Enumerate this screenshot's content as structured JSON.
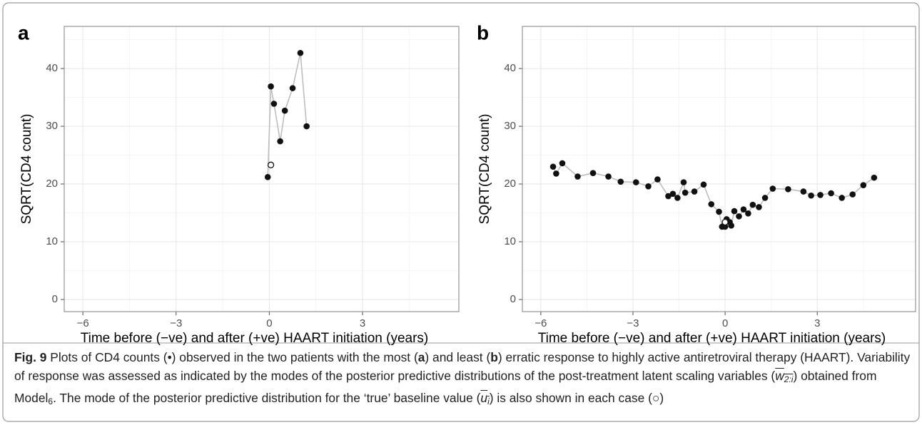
{
  "chart_data": [
    {
      "type": "line",
      "panel_label": "a",
      "xlabel": "Time before (−ve) and after (+ve) HAART initiation (years)",
      "ylabel": "SQRT(CD4 count)",
      "xlim": [
        -6.6,
        6.1
      ],
      "ylim": [
        -2.1,
        47.3
      ],
      "xticks": [
        {
          "value": -6,
          "label": "−6"
        },
        {
          "value": -3,
          "label": "−3"
        },
        0,
        3
      ],
      "yticks": [
        0,
        10,
        20,
        30,
        40
      ],
      "minor_xticks": [
        -4.5,
        -1.5,
        1.5,
        4.5
      ],
      "minor_yticks": [
        5,
        15,
        25,
        35,
        45
      ],
      "grid": true,
      "series": [
        {
          "x": [
            -0.05,
            0.05,
            0.15,
            0.35,
            0.5,
            0.75,
            1.0,
            1.2
          ],
          "values": [
            21.2,
            36.9,
            33.9,
            27.4,
            32.7,
            36.6,
            42.7,
            30.0
          ],
          "color": "#111111",
          "line_color": "#bdbdbd",
          "marker": "filled"
        },
        {
          "x": [
            0.05
          ],
          "values": [
            23.3
          ],
          "color": "#111111",
          "marker": "open"
        }
      ]
    },
    {
      "type": "line",
      "panel_label": "b",
      "xlabel": "Time before (−ve) and after (+ve) HAART initiation (years)",
      "ylabel": "SQRT(CD4 count)",
      "xlim": [
        -6.6,
        6.2
      ],
      "ylim": [
        -2.1,
        47.3
      ],
      "xticks": [
        {
          "value": -6,
          "label": "−6"
        },
        {
          "value": -3,
          "label": "−3"
        },
        0,
        3
      ],
      "yticks": [
        0,
        10,
        20,
        30,
        40
      ],
      "minor_xticks": [
        -4.5,
        -1.5,
        1.5,
        4.5
      ],
      "minor_yticks": [
        5,
        15,
        25,
        35,
        45
      ],
      "grid": true,
      "series": [
        {
          "x": [
            -5.6,
            -5.5,
            -5.3,
            -4.8,
            -4.3,
            -3.8,
            -3.4,
            -2.9,
            -2.5,
            -2.2,
            -1.85,
            -1.7,
            -1.55,
            -1.35,
            -1.3,
            -1.0,
            -0.7,
            -0.45,
            -0.2,
            -0.1,
            0.0,
            0.05,
            0.15,
            0.2,
            0.3,
            0.45,
            0.6,
            0.75,
            0.9,
            1.1,
            1.3,
            1.55,
            2.05,
            2.55,
            2.8,
            3.1,
            3.45,
            3.8,
            4.15,
            4.5,
            4.85
          ],
          "values": [
            23.0,
            21.8,
            23.6,
            21.3,
            21.9,
            21.3,
            20.4,
            20.3,
            19.6,
            20.8,
            17.9,
            18.3,
            17.6,
            20.3,
            18.5,
            18.7,
            19.9,
            16.5,
            15.2,
            12.6,
            12.6,
            13.9,
            13.4,
            12.8,
            15.3,
            14.4,
            15.6,
            14.9,
            16.4,
            16.0,
            17.6,
            19.2,
            19.1,
            18.7,
            18.0,
            18.1,
            18.4,
            17.6,
            18.2,
            19.8,
            21.1
          ],
          "color": "#111111",
          "line_color": "#bdbdbd",
          "marker": "filled"
        },
        {
          "x": [
            0.0
          ],
          "values": [
            13.4
          ],
          "color": "#111111",
          "marker": "open"
        }
      ]
    }
  ],
  "caption": {
    "runs": [
      {
        "text": "Fig. 9",
        "style": "bold"
      },
      {
        "text": " Plots of CD4 counts (•) observed in the two patients with the most (",
        "style": "normal"
      },
      {
        "text": "a",
        "style": "bold"
      },
      {
        "text": ") and least (",
        "style": "normal"
      },
      {
        "text": "b",
        "style": "bold"
      },
      {
        "text": ") erratic response to highly active antiretroviral therapy (HAART). Variability of response was assessed as indicated by the modes of the posterior predictive distributions of the post-treatment latent scaling variables (",
        "style": "normal"
      },
      {
        "text": "w",
        "style": "hat"
      },
      {
        "text": "2:i",
        "style": "hatsub"
      },
      {
        "text": ") obtained from Model",
        "style": "normal"
      },
      {
        "text": "6",
        "style": "sub"
      },
      {
        "text": ". The mode of the posterior predictive distribution for the ‘true’ baseline value (",
        "style": "normal"
      },
      {
        "text": "u",
        "style": "hat"
      },
      {
        "text": "i",
        "style": "hatsub"
      },
      {
        "text": ") is also shown in each case (○)",
        "style": "normal"
      }
    ]
  }
}
